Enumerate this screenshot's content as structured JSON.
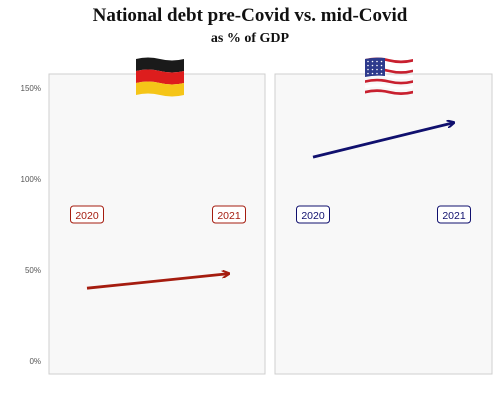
{
  "title": "National debt pre-Covid vs. mid-Covid",
  "subtitle": "as % of GDP",
  "chart_data": {
    "type": "line",
    "title": "National debt pre-Covid vs. mid-Covid",
    "subtitle": "as % of GDP",
    "ylim": [
      0,
      160
    ],
    "yticks": [
      0,
      50,
      100,
      150
    ],
    "ytick_labels": [
      "0%",
      "50%",
      "100%",
      "150%"
    ],
    "grid": false,
    "panels": [
      {
        "name": "Germany",
        "flag": "germany-flag",
        "color": "#a51c0f",
        "x": [
          "2020",
          "2021"
        ],
        "values": [
          40,
          48
        ]
      },
      {
        "name": "United States",
        "flag": "usa-flag",
        "color": "#10106e",
        "x": [
          "2020",
          "2021"
        ],
        "values": [
          112,
          131
        ]
      }
    ]
  }
}
